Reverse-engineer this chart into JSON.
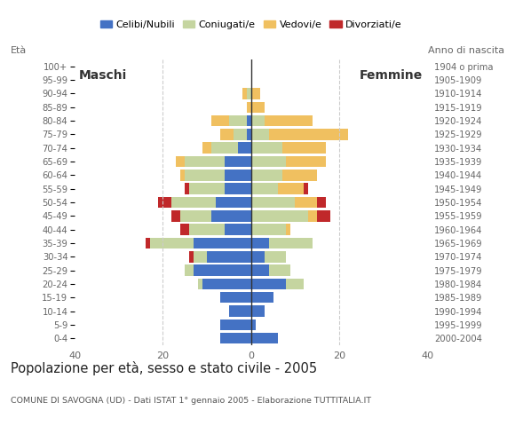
{
  "age_groups": [
    "0-4",
    "5-9",
    "10-14",
    "15-19",
    "20-24",
    "25-29",
    "30-34",
    "35-39",
    "40-44",
    "45-49",
    "50-54",
    "55-59",
    "60-64",
    "65-69",
    "70-74",
    "75-79",
    "80-84",
    "85-89",
    "90-94",
    "95-99",
    "100+"
  ],
  "birth_years": [
    "2000-2004",
    "1995-1999",
    "1990-1994",
    "1985-1989",
    "1980-1984",
    "1975-1979",
    "1970-1974",
    "1965-1969",
    "1960-1964",
    "1955-1959",
    "1950-1954",
    "1945-1949",
    "1940-1944",
    "1935-1939",
    "1930-1934",
    "1925-1929",
    "1920-1924",
    "1915-1919",
    "1910-1914",
    "1905-1909",
    "1904 o prima"
  ],
  "male_celibe": [
    7,
    7,
    5,
    7,
    11,
    13,
    10,
    13,
    6,
    9,
    8,
    6,
    6,
    6,
    3,
    1,
    1,
    0,
    0,
    0,
    0
  ],
  "male_coniugato": [
    0,
    0,
    0,
    0,
    1,
    2,
    3,
    10,
    8,
    7,
    10,
    8,
    9,
    9,
    6,
    3,
    4,
    0,
    1,
    0,
    0
  ],
  "male_vedovo": [
    0,
    0,
    0,
    0,
    0,
    0,
    0,
    0,
    0,
    0,
    0,
    0,
    1,
    2,
    2,
    3,
    4,
    1,
    1,
    0,
    0
  ],
  "male_divorziato": [
    0,
    0,
    0,
    0,
    0,
    0,
    1,
    1,
    2,
    2,
    3,
    1,
    0,
    0,
    0,
    0,
    0,
    0,
    0,
    0,
    0
  ],
  "female_celibe": [
    6,
    1,
    3,
    5,
    8,
    4,
    3,
    4,
    0,
    0,
    0,
    0,
    0,
    0,
    0,
    0,
    0,
    0,
    0,
    0,
    0
  ],
  "female_coniugato": [
    0,
    0,
    0,
    0,
    4,
    5,
    5,
    10,
    8,
    13,
    10,
    6,
    7,
    8,
    7,
    4,
    3,
    0,
    0,
    0,
    0
  ],
  "female_vedovo": [
    0,
    0,
    0,
    0,
    0,
    0,
    0,
    0,
    1,
    2,
    5,
    6,
    8,
    9,
    10,
    18,
    11,
    3,
    2,
    0,
    0
  ],
  "female_divorziato": [
    0,
    0,
    0,
    0,
    0,
    0,
    0,
    0,
    0,
    3,
    2,
    1,
    0,
    0,
    0,
    0,
    0,
    0,
    0,
    0,
    0
  ],
  "colors": {
    "celibe": "#4472c4",
    "coniugato": "#c5d5a0",
    "vedovo": "#f0c060",
    "divorziato": "#c0282a"
  },
  "legend_labels": [
    "Celibi/Nubili",
    "Coniugati/e",
    "Vedovi/e",
    "Divorziati/e"
  ],
  "title": "Popolazione per età, sesso e stato civile - 2005",
  "subtitle": "COMUNE DI SAVOGNA (UD) - Dati ISTAT 1° gennaio 2005 - Elaborazione TUTTITALIA.IT",
  "label_maschi": "Maschi",
  "label_femmine": "Femmine",
  "label_eta": "Età",
  "label_anno": "Anno di nascita",
  "xlim": 40,
  "background_color": "#ffffff",
  "grid_color": "#cccccc"
}
